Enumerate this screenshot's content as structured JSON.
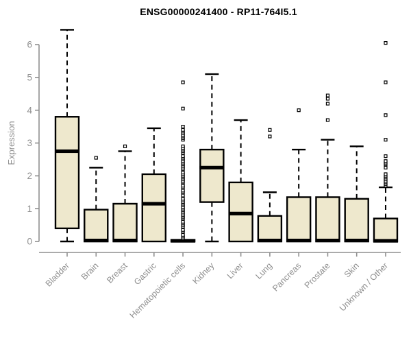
{
  "chart_data": {
    "type": "boxplot",
    "title": "ENSG00000241400 - RP11-764I5.1",
    "ylabel": "Expression",
    "xlabel": "",
    "ylim": [
      0,
      6.6
    ],
    "yticks": [
      0,
      1,
      2,
      3,
      4,
      5,
      6
    ],
    "grid": false,
    "legend": null,
    "categories": [
      "Bladder",
      "Brain",
      "Breast",
      "Gastric",
      "Hematopoietic cells",
      "Kidney",
      "Liver",
      "Lung",
      "Pancreas",
      "Prostate",
      "Skin",
      "Unknown / Other"
    ],
    "boxes": [
      {
        "category": "Bladder",
        "low": 0,
        "q1": 0.4,
        "median": 2.75,
        "q3": 3.8,
        "high": 6.45,
        "outliers": []
      },
      {
        "category": "Brain",
        "low": 0,
        "q1": 0,
        "median": 0.03,
        "q3": 0.97,
        "high": 2.25,
        "outliers": [
          2.55
        ]
      },
      {
        "category": "Breast",
        "low": 0,
        "q1": 0,
        "median": 0.03,
        "q3": 1.15,
        "high": 2.75,
        "outliers": [
          2.9
        ]
      },
      {
        "category": "Gastric",
        "low": 0,
        "q1": 0,
        "median": 1.15,
        "q3": 2.05,
        "high": 3.45,
        "outliers": []
      },
      {
        "category": "Hematopoietic cells",
        "low": 0,
        "q1": 0,
        "median": 0.02,
        "q3": 0.05,
        "high": 0.05,
        "outliers": [
          0.1,
          0.15,
          0.2,
          0.3,
          0.35,
          0.45,
          0.5,
          0.55,
          0.6,
          0.7,
          0.75,
          0.8,
          0.85,
          0.9,
          0.95,
          1.0,
          1.05,
          1.1,
          1.15,
          1.2,
          1.25,
          1.3,
          1.4,
          1.5,
          1.55,
          1.65,
          1.7,
          1.8,
          1.85,
          1.9,
          1.95,
          2.0,
          2.05,
          2.1,
          2.2,
          2.25,
          2.3,
          2.35,
          2.4,
          2.45,
          2.5,
          2.55,
          2.6,
          2.7,
          2.75,
          2.8,
          2.85,
          2.9,
          3.1,
          3.15,
          3.2,
          3.25,
          3.3,
          3.35,
          3.4,
          3.5,
          4.05,
          4.85
        ]
      },
      {
        "category": "Kidney",
        "low": 0,
        "q1": 1.2,
        "median": 2.25,
        "q3": 2.8,
        "high": 5.1,
        "outliers": []
      },
      {
        "category": "Liver",
        "low": 0,
        "q1": 0,
        "median": 0.85,
        "q3": 1.8,
        "high": 3.7,
        "outliers": []
      },
      {
        "category": "Lung",
        "low": 0,
        "q1": 0,
        "median": 0.03,
        "q3": 0.78,
        "high": 1.5,
        "outliers": [
          3.2,
          3.4
        ]
      },
      {
        "category": "Pancreas",
        "low": 0,
        "q1": 0,
        "median": 0.03,
        "q3": 1.35,
        "high": 2.8,
        "outliers": [
          4.0
        ]
      },
      {
        "category": "Prostate",
        "low": 0,
        "q1": 0,
        "median": 0.03,
        "q3": 1.35,
        "high": 3.1,
        "outliers": [
          3.7,
          4.2,
          4.35,
          4.45
        ]
      },
      {
        "category": "Skin",
        "low": 0,
        "q1": 0,
        "median": 0.03,
        "q3": 1.3,
        "high": 2.9,
        "outliers": []
      },
      {
        "category": "Unknown / Other",
        "low": 0,
        "q1": 0,
        "median": 0.02,
        "q3": 0.7,
        "high": 1.65,
        "outliers": [
          1.7,
          1.75,
          1.8,
          1.85,
          1.9,
          1.95,
          2.0,
          2.05,
          2.25,
          2.35,
          2.4,
          2.45,
          2.6,
          3.1,
          3.85,
          4.85,
          6.05
        ]
      }
    ],
    "colors": {
      "box_fill": "#EEE8CD",
      "box_stroke": "#000000",
      "median": "#000000",
      "whisker": "#000000",
      "outlier_stroke": "#000000",
      "outlier_fill": "#FFFFFF",
      "axis": "#8F8F8F",
      "label": "#8F8F8F",
      "title": "#000000",
      "background": "#FFFFFF"
    }
  }
}
